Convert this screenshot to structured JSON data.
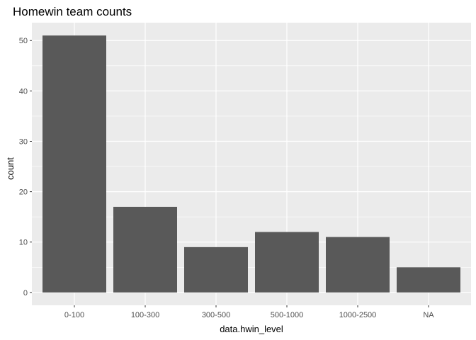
{
  "chart_data": {
    "type": "bar",
    "title": "Homewin team counts",
    "xlabel": "data.hwin_level",
    "ylabel": "count",
    "categories": [
      "0-100",
      "100-300",
      "300-500",
      "500-1000",
      "1000-2500",
      "NA"
    ],
    "values": [
      51,
      17,
      9,
      12,
      11,
      5
    ],
    "ylim": [
      -2.55,
      53.55
    ],
    "yticks": [
      0,
      10,
      20,
      30,
      40,
      50
    ],
    "grid": true,
    "colors": {
      "panel": "#ebebeb",
      "grid_major": "#ffffff",
      "bar": "#595959",
      "tick_text": "#4d4d4d",
      "tick_mark": "#333333"
    }
  }
}
